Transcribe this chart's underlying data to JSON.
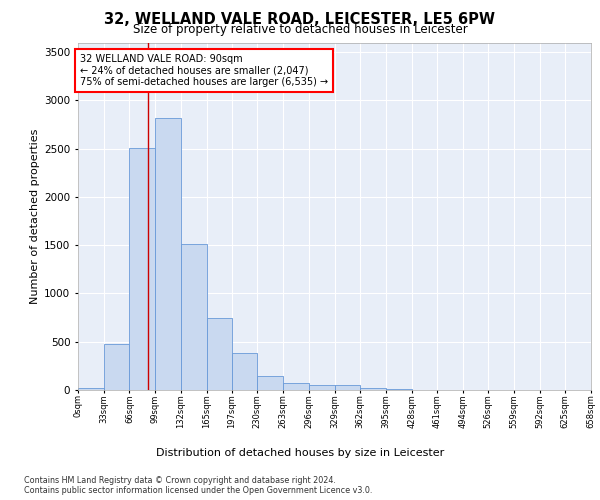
{
  "title": "32, WELLAND VALE ROAD, LEICESTER, LE5 6PW",
  "subtitle": "Size of property relative to detached houses in Leicester",
  "xlabel": "Distribution of detached houses by size in Leicester",
  "ylabel": "Number of detached properties",
  "bar_color": "#c9d9f0",
  "bar_edge_color": "#6899d8",
  "background_color": "#e8eef8",
  "grid_color": "#ffffff",
  "annotation_box_text": "32 WELLAND VALE ROAD: 90sqm\n← 24% of detached houses are smaller (2,047)\n75% of semi-detached houses are larger (6,535) →",
  "vline_x": 90,
  "vline_color": "#cc0000",
  "bin_edges": [
    0,
    33,
    66,
    99,
    132,
    165,
    197,
    230,
    263,
    296,
    329,
    362,
    395,
    428,
    461,
    494,
    526,
    559,
    592,
    625,
    658
  ],
  "bin_labels": [
    "0sqm",
    "33sqm",
    "66sqm",
    "99sqm",
    "132sqm",
    "165sqm",
    "197sqm",
    "230sqm",
    "263sqm",
    "296sqm",
    "329sqm",
    "362sqm",
    "395sqm",
    "428sqm",
    "461sqm",
    "494sqm",
    "526sqm",
    "559sqm",
    "592sqm",
    "625sqm",
    "658sqm"
  ],
  "bar_heights": [
    20,
    480,
    2510,
    2820,
    1510,
    750,
    380,
    140,
    75,
    50,
    50,
    25,
    15,
    0,
    0,
    0,
    0,
    0,
    0,
    0
  ],
  "ylim": [
    0,
    3600
  ],
  "yticks": [
    0,
    500,
    1000,
    1500,
    2000,
    2500,
    3000,
    3500
  ],
  "footer1": "Contains HM Land Registry data © Crown copyright and database right 2024.",
  "footer2": "Contains public sector information licensed under the Open Government Licence v3.0."
}
